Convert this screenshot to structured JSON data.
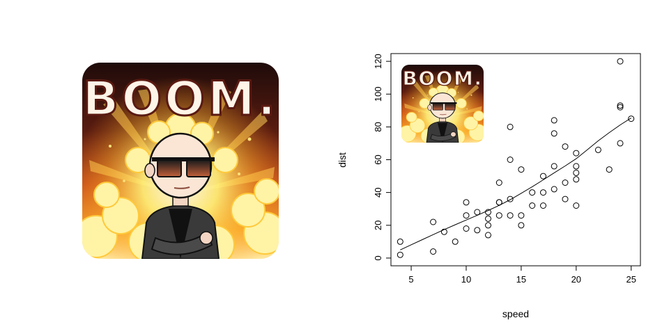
{
  "graphic": {
    "title": "BOOM.",
    "inset_title": "BOOM."
  },
  "colors": {
    "fire_dark": "#2a0f0a",
    "fire_orange": "#c9531a",
    "fire_yellow": "#ffe14a",
    "text_cream": "#fff4e8",
    "jacket": "#333333"
  },
  "chart_data": {
    "type": "scatter",
    "title": "",
    "xlabel": "speed",
    "ylabel": "dist",
    "xlim": [
      3.16,
      25.84
    ],
    "ylim": [
      -4.72,
      124.72
    ],
    "x_ticks": [
      5,
      10,
      15,
      20,
      25
    ],
    "y_ticks": [
      0,
      20,
      40,
      60,
      80,
      100,
      120
    ],
    "grid": false,
    "points": [
      [
        4,
        2
      ],
      [
        4,
        10
      ],
      [
        7,
        4
      ],
      [
        7,
        22
      ],
      [
        8,
        16
      ],
      [
        9,
        10
      ],
      [
        10,
        18
      ],
      [
        10,
        26
      ],
      [
        10,
        34
      ],
      [
        11,
        17
      ],
      [
        11,
        28
      ],
      [
        12,
        14
      ],
      [
        12,
        20
      ],
      [
        12,
        24
      ],
      [
        12,
        28
      ],
      [
        13,
        26
      ],
      [
        13,
        34
      ],
      [
        13,
        34
      ],
      [
        13,
        46
      ],
      [
        14,
        26
      ],
      [
        14,
        36
      ],
      [
        14,
        60
      ],
      [
        14,
        80
      ],
      [
        15,
        20
      ],
      [
        15,
        26
      ],
      [
        15,
        54
      ],
      [
        16,
        32
      ],
      [
        16,
        40
      ],
      [
        17,
        32
      ],
      [
        17,
        40
      ],
      [
        17,
        50
      ],
      [
        18,
        42
      ],
      [
        18,
        56
      ],
      [
        18,
        76
      ],
      [
        18,
        84
      ],
      [
        19,
        36
      ],
      [
        19,
        46
      ],
      [
        19,
        68
      ],
      [
        20,
        32
      ],
      [
        20,
        48
      ],
      [
        20,
        52
      ],
      [
        20,
        56
      ],
      [
        20,
        64
      ],
      [
        22,
        66
      ],
      [
        23,
        54
      ],
      [
        24,
        70
      ],
      [
        24,
        92
      ],
      [
        24,
        93
      ],
      [
        24,
        120
      ],
      [
        25,
        85
      ]
    ],
    "smooth_line": [
      [
        4,
        4.97
      ],
      [
        5,
        8.1
      ],
      [
        6,
        11.2
      ],
      [
        7,
        14.3
      ],
      [
        8,
        17.4
      ],
      [
        9,
        20.3
      ],
      [
        10,
        23.2
      ],
      [
        11,
        26.1
      ],
      [
        12,
        29.0
      ],
      [
        13,
        32.1
      ],
      [
        14,
        35.6
      ],
      [
        15,
        39.5
      ],
      [
        16,
        43.5
      ],
      [
        17,
        47.7
      ],
      [
        18,
        52.0
      ],
      [
        19,
        56.2
      ],
      [
        20,
        60.6
      ],
      [
        21,
        66.0
      ],
      [
        22,
        71.5
      ],
      [
        23,
        76.5
      ],
      [
        24,
        81.2
      ],
      [
        25,
        85.4
      ]
    ]
  }
}
